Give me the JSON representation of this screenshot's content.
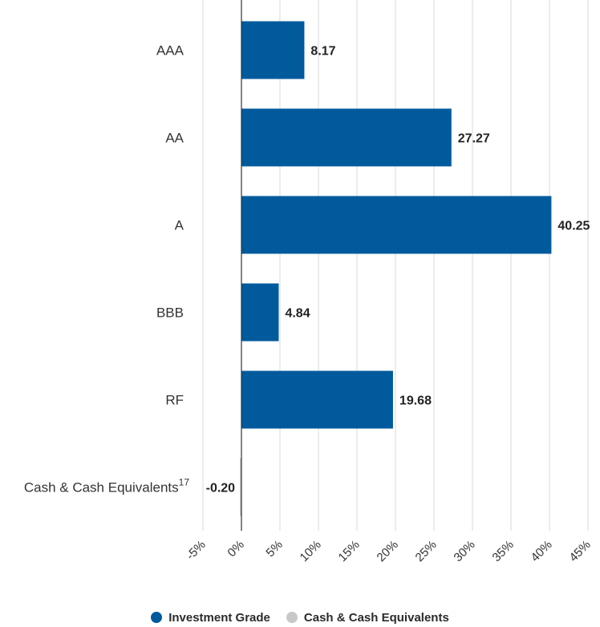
{
  "colors": {
    "investment_grade": "#005a9c",
    "cash": "#c8c8c8",
    "grid": "#d9d9d9",
    "axis": "#333333"
  },
  "legend": [
    {
      "label": "Investment Grade",
      "color": "#005a9c"
    },
    {
      "label": "Cash & Cash Equivalents",
      "color": "#c8c8c8"
    }
  ],
  "chart_data": {
    "type": "bar",
    "orientation": "horizontal",
    "categories": [
      "AAA",
      "AA",
      "A",
      "BBB",
      "RF",
      "Cash & Cash Equivalents"
    ],
    "category_superscripts": [
      "",
      "",
      "",
      "",
      "",
      "17"
    ],
    "values": [
      8.17,
      27.27,
      40.25,
      4.84,
      19.68,
      -0.2
    ],
    "value_labels": [
      "8.17",
      "27.27",
      "40.25",
      "4.84",
      "19.68",
      "-0.20"
    ],
    "series_membership": [
      "Investment Grade",
      "Investment Grade",
      "Investment Grade",
      "Investment Grade",
      "Investment Grade",
      "Cash & Cash Equivalents"
    ],
    "xlim": [
      -5,
      45
    ],
    "xticks": [
      -5,
      0,
      5,
      10,
      15,
      20,
      25,
      30,
      35,
      40,
      45
    ],
    "xtick_labels": [
      "-5%",
      "0%",
      "5%",
      "10%",
      "15%",
      "20%",
      "25%",
      "30%",
      "35%",
      "40%",
      "45%"
    ],
    "grid": true,
    "legend_position": "bottom"
  }
}
